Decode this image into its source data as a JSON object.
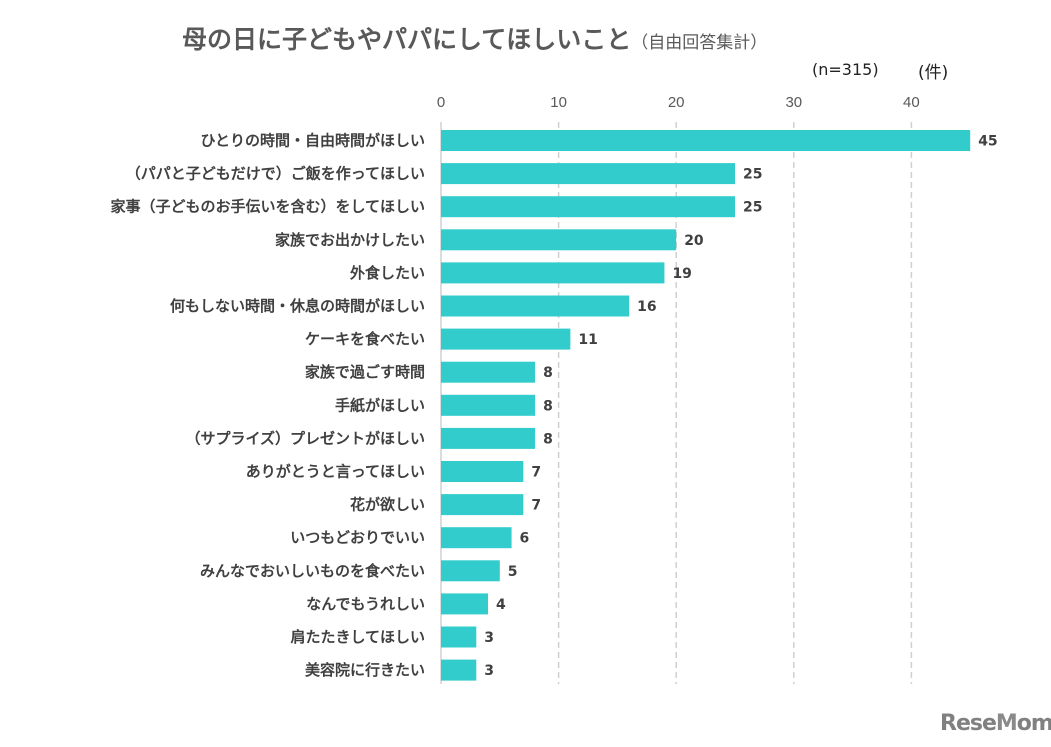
{
  "chart_data": {
    "type": "bar",
    "orientation": "horizontal",
    "title": "母の日に子どもやパパにしてほしいこと",
    "subtitle": "（自由回答集計）",
    "sample_size": "(n=315)",
    "unit_label": "(件)",
    "xlim": [
      0,
      45
    ],
    "xticks": [
      0,
      10,
      20,
      30,
      40
    ],
    "grid": "vertical dashed",
    "bar_color": "#33CCCC",
    "categories": [
      "ひとりの時間・自由時間がほしい",
      "（パパと子どもだけで）ご飯を作ってほしい",
      "家事（子どものお手伝いを含む）をしてほしい",
      "家族でお出かけしたい",
      "外食したい",
      "何もしない時間・休息の時間がほしい",
      "ケーキを食べたい",
      "家族で過ごす時間",
      "手紙がほしい",
      "（サプライズ）プレゼントがほしい",
      "ありがとうと言ってほしい",
      "花が欲しい",
      "いつもどおりでいい",
      "みんなでおいしいものを食べたい",
      "なんでもうれしい",
      "肩たたきしてほしい",
      "美容院に行きたい"
    ],
    "values": [
      45,
      25,
      25,
      20,
      19,
      16,
      11,
      8,
      8,
      8,
      7,
      7,
      6,
      5,
      4,
      3,
      3
    ]
  },
  "watermark": "ReseMom"
}
